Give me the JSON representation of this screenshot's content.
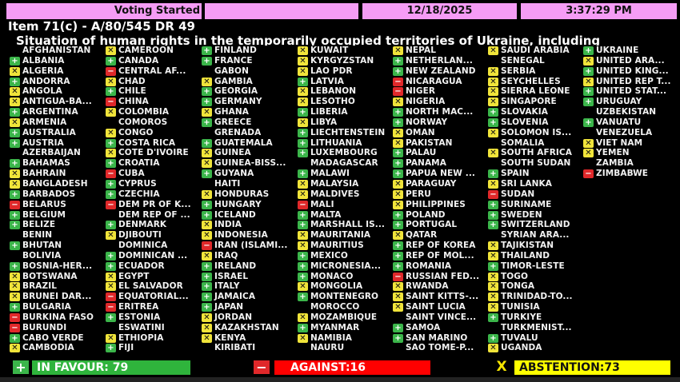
{
  "header": {
    "status": "Voting Started",
    "blank": "",
    "date": "12/18/2025",
    "time": "3:37:29 PM"
  },
  "title": "Item 71(c) - A/80/545 DR 49",
  "subtitle": "Situation of human rights in the temporarily occupied territories of Ukraine, including",
  "colors": {
    "yes": "#3bb54a",
    "no": "#e0282a",
    "abstain": "#f0e43a",
    "header": "#f59cf5"
  },
  "icons": {
    "yes": "plus-icon",
    "no": "minus-icon",
    "abs": "x-icon"
  },
  "columns": [
    [
      [
        "",
        "AFGHANISTAN"
      ],
      [
        "yes",
        "ALBANIA"
      ],
      [
        "abs",
        "ALGERIA"
      ],
      [
        "yes",
        "ANDORRA"
      ],
      [
        "abs",
        "ANGOLA"
      ],
      [
        "abs",
        "ANTIGUA-BA..."
      ],
      [
        "yes",
        "ARGENTINA"
      ],
      [
        "abs",
        "ARMENIA"
      ],
      [
        "yes",
        "AUSTRALIA"
      ],
      [
        "yes",
        "AUSTRIA"
      ],
      [
        "",
        "AZERBAIJAN"
      ],
      [
        "yes",
        "BAHAMAS"
      ],
      [
        "abs",
        "BAHRAIN"
      ],
      [
        "abs",
        "BANGLADESH"
      ],
      [
        "yes",
        "BARBADOS"
      ],
      [
        "no",
        "BELARUS"
      ],
      [
        "yes",
        "BELGIUM"
      ],
      [
        "yes",
        "BELIZE"
      ],
      [
        "",
        "BENIN"
      ],
      [
        "yes",
        "BHUTAN"
      ],
      [
        "",
        "BOLIVIA"
      ],
      [
        "yes",
        "BOSNIA-HER..."
      ],
      [
        "abs",
        "BOTSWANA"
      ],
      [
        "abs",
        "BRAZIL"
      ],
      [
        "abs",
        "BRUNEI DAR..."
      ],
      [
        "yes",
        "BULGARIA"
      ],
      [
        "no",
        "BURKINA FASO"
      ],
      [
        "no",
        "BURUNDI"
      ],
      [
        "yes",
        "CABO VERDE"
      ],
      [
        "abs",
        "CAMBODIA"
      ]
    ],
    [
      [
        "abs",
        "CAMEROON"
      ],
      [
        "yes",
        "CANADA"
      ],
      [
        "no",
        "CENTRAL AF..."
      ],
      [
        "abs",
        "CHAD"
      ],
      [
        "yes",
        "CHILE"
      ],
      [
        "no",
        "CHINA"
      ],
      [
        "abs",
        "COLOMBIA"
      ],
      [
        "",
        "COMOROS"
      ],
      [
        "abs",
        "CONGO"
      ],
      [
        "yes",
        "COSTA RICA"
      ],
      [
        "abs",
        "COTE D'IVOIRE"
      ],
      [
        "yes",
        "CROATIA"
      ],
      [
        "no",
        "CUBA"
      ],
      [
        "yes",
        "CYPRUS"
      ],
      [
        "yes",
        "CZECHIA"
      ],
      [
        "no",
        "DEM PR OF K..."
      ],
      [
        "",
        "DEM REP OF ..."
      ],
      [
        "yes",
        "DENMARK"
      ],
      [
        "abs",
        "DJIBOUTI"
      ],
      [
        "",
        "DOMINICA"
      ],
      [
        "yes",
        "DOMINICAN ..."
      ],
      [
        "yes",
        "ECUADOR"
      ],
      [
        "abs",
        "EGYPT"
      ],
      [
        "abs",
        "EL SALVADOR"
      ],
      [
        "no",
        "EQUATORIAL..."
      ],
      [
        "no",
        "ERITREA"
      ],
      [
        "yes",
        "ESTONIA"
      ],
      [
        "",
        "ESWATINI"
      ],
      [
        "abs",
        "ETHIOPIA"
      ],
      [
        "yes",
        "FIJI"
      ]
    ],
    [
      [
        "yes",
        "FINLAND"
      ],
      [
        "yes",
        "FRANCE"
      ],
      [
        "",
        "GABON"
      ],
      [
        "abs",
        "GAMBIA"
      ],
      [
        "yes",
        "GEORGIA"
      ],
      [
        "yes",
        "GERMANY"
      ],
      [
        "abs",
        "GHANA"
      ],
      [
        "yes",
        "GREECE"
      ],
      [
        "",
        "GRENADA"
      ],
      [
        "yes",
        "GUATEMALA"
      ],
      [
        "abs",
        "GUINEA"
      ],
      [
        "abs",
        "GUINEA-BISS..."
      ],
      [
        "yes",
        "GUYANA"
      ],
      [
        "",
        "HAITI"
      ],
      [
        "abs",
        "HONDURAS"
      ],
      [
        "yes",
        "HUNGARY"
      ],
      [
        "yes",
        "ICELAND"
      ],
      [
        "abs",
        "INDIA"
      ],
      [
        "abs",
        "INDONESIA"
      ],
      [
        "no",
        "IRAN (ISLAMI..."
      ],
      [
        "abs",
        "IRAQ"
      ],
      [
        "yes",
        "IRELAND"
      ],
      [
        "yes",
        "ISRAEL"
      ],
      [
        "yes",
        "ITALY"
      ],
      [
        "yes",
        "JAMAICA"
      ],
      [
        "yes",
        "JAPAN"
      ],
      [
        "abs",
        "JORDAN"
      ],
      [
        "abs",
        "KAZAKHSTAN"
      ],
      [
        "abs",
        "KENYA"
      ],
      [
        "",
        "KIRIBATI"
      ]
    ],
    [
      [
        "abs",
        "KUWAIT"
      ],
      [
        "abs",
        "KYRGYZSTAN"
      ],
      [
        "abs",
        "LAO PDR"
      ],
      [
        "yes",
        "LATVIA"
      ],
      [
        "abs",
        "LEBANON"
      ],
      [
        "abs",
        "LESOTHO"
      ],
      [
        "yes",
        "LIBERIA"
      ],
      [
        "abs",
        "LIBYA"
      ],
      [
        "yes",
        "LIECHTENSTEIN"
      ],
      [
        "yes",
        "LITHUANIA"
      ],
      [
        "yes",
        "LUXEMBOURG"
      ],
      [
        "",
        "MADAGASCAR"
      ],
      [
        "yes",
        "MALAWI"
      ],
      [
        "abs",
        "MALAYSIA"
      ],
      [
        "abs",
        "MALDIVES"
      ],
      [
        "no",
        "MALI"
      ],
      [
        "yes",
        "MALTA"
      ],
      [
        "yes",
        "MARSHALL IS..."
      ],
      [
        "abs",
        "MAURITANIA"
      ],
      [
        "abs",
        "MAURITIUS"
      ],
      [
        "yes",
        "MEXICO"
      ],
      [
        "yes",
        "MICRONESIA..."
      ],
      [
        "yes",
        "MONACO"
      ],
      [
        "abs",
        "MONGOLIA"
      ],
      [
        "yes",
        "MONTENEGRO"
      ],
      [
        "",
        "MOROCCO"
      ],
      [
        "abs",
        "MOZAMBIQUE"
      ],
      [
        "yes",
        "MYANMAR"
      ],
      [
        "abs",
        "NAMIBIA"
      ],
      [
        "",
        "NAURU"
      ]
    ],
    [
      [
        "abs",
        "NEPAL"
      ],
      [
        "yes",
        "NETHERLAN..."
      ],
      [
        "yes",
        "NEW ZEALAND"
      ],
      [
        "no",
        "NICARAGUA"
      ],
      [
        "no",
        "NIGER"
      ],
      [
        "abs",
        "NIGERIA"
      ],
      [
        "yes",
        "NORTH MAC..."
      ],
      [
        "yes",
        "NORWAY"
      ],
      [
        "abs",
        "OMAN"
      ],
      [
        "abs",
        "PAKISTAN"
      ],
      [
        "yes",
        "PALAU"
      ],
      [
        "yes",
        "PANAMA"
      ],
      [
        "yes",
        "PAPUA NEW ..."
      ],
      [
        "abs",
        "PARAGUAY"
      ],
      [
        "abs",
        "PERU"
      ],
      [
        "abs",
        "PHILIPPINES"
      ],
      [
        "yes",
        "POLAND"
      ],
      [
        "yes",
        "PORTUGAL"
      ],
      [
        "abs",
        "QATAR"
      ],
      [
        "yes",
        "REP OF KOREA"
      ],
      [
        "yes",
        "REP OF MOL..."
      ],
      [
        "yes",
        "ROMANIA"
      ],
      [
        "no",
        "RUSSIAN FED..."
      ],
      [
        "abs",
        "RWANDA"
      ],
      [
        "abs",
        "SAINT KITTS-..."
      ],
      [
        "abs",
        "SAINT LUCIA"
      ],
      [
        "",
        "SAINT VINCE..."
      ],
      [
        "yes",
        "SAMOA"
      ],
      [
        "yes",
        "SAN MARINO"
      ],
      [
        "",
        "SAO TOME-P..."
      ]
    ],
    [
      [
        "abs",
        "SAUDI ARABIA"
      ],
      [
        "",
        "SENEGAL"
      ],
      [
        "abs",
        "SERBIA"
      ],
      [
        "abs",
        "SEYCHELLES"
      ],
      [
        "abs",
        "SIERRA LEONE"
      ],
      [
        "abs",
        "SINGAPORE"
      ],
      [
        "yes",
        "SLOVAKIA"
      ],
      [
        "yes",
        "SLOVENIA"
      ],
      [
        "abs",
        "SOLOMON IS..."
      ],
      [
        "",
        "SOMALIA"
      ],
      [
        "abs",
        "SOUTH AFRICA"
      ],
      [
        "",
        "SOUTH SUDAN"
      ],
      [
        "yes",
        "SPAIN"
      ],
      [
        "abs",
        "SRI LANKA"
      ],
      [
        "no",
        "SUDAN"
      ],
      [
        "yes",
        "SURINAME"
      ],
      [
        "yes",
        "SWEDEN"
      ],
      [
        "yes",
        "SWITZERLAND"
      ],
      [
        "",
        "SYRIAN ARA..."
      ],
      [
        "abs",
        "TAJIKISTAN"
      ],
      [
        "abs",
        "THAILAND"
      ],
      [
        "yes",
        "TIMOR-LESTE"
      ],
      [
        "abs",
        "TOGO"
      ],
      [
        "abs",
        "TONGA"
      ],
      [
        "abs",
        "TRINIDAD-TO..."
      ],
      [
        "abs",
        "TUNISIA"
      ],
      [
        "yes",
        "TURKIYE"
      ],
      [
        "",
        "TURKMENIST..."
      ],
      [
        "yes",
        "TUVALU"
      ],
      [
        "abs",
        "UGANDA"
      ]
    ],
    [
      [
        "yes",
        "UKRAINE"
      ],
      [
        "abs",
        "UNITED ARA..."
      ],
      [
        "yes",
        "UNITED KING..."
      ],
      [
        "abs",
        "UNITED REP T..."
      ],
      [
        "yes",
        "UNITED STAT..."
      ],
      [
        "yes",
        "URUGUAY"
      ],
      [
        "",
        "UZBEKISTAN"
      ],
      [
        "yes",
        "VANUATU"
      ],
      [
        "",
        "VENEZUELA"
      ],
      [
        "abs",
        "VIET NAM"
      ],
      [
        "abs",
        "YEMEN"
      ],
      [
        "",
        "ZAMBIA"
      ],
      [
        "no",
        "ZIMBABWE"
      ]
    ]
  ],
  "totals": {
    "in_favour": "IN FAVOUR: 79",
    "against": "AGAINST:16",
    "abstention": "ABSTENTION:73"
  }
}
